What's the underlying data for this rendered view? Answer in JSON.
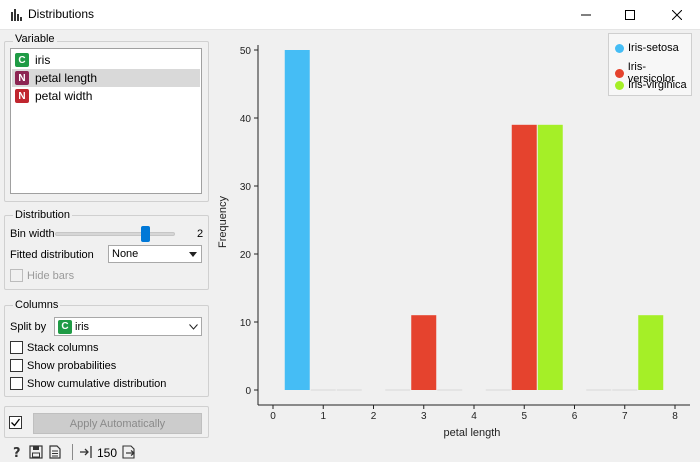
{
  "window": {
    "title": "Distributions"
  },
  "variable": {
    "group_title": "Variable",
    "items": [
      {
        "badge": "C",
        "label": "iris",
        "type": "cat"
      },
      {
        "badge": "N",
        "label": "petal length",
        "type": "num",
        "selected": true
      },
      {
        "badge": "N",
        "label": "petal width",
        "type": "num"
      }
    ]
  },
  "distribution": {
    "group_title": "Distribution",
    "bin_width_label": "Bin width",
    "bin_width_value": "2",
    "bin_width_slider_fraction": 0.75,
    "fitted_label": "Fitted distribution",
    "fitted_value": "None",
    "hide_bars_label": "Hide bars"
  },
  "columns": {
    "group_title": "Columns",
    "split_by_label": "Split by",
    "split_by_badge": "C",
    "split_by_value": "iris",
    "stack_label": "Stack columns",
    "probabilities_label": "Show probabilities",
    "cumulative_label": "Show cumulative distribution"
  },
  "apply": {
    "label": "Apply Automatically",
    "checked": true
  },
  "status": {
    "count": "150"
  },
  "chart_data": {
    "type": "bar",
    "xlabel": "petal length",
    "ylabel": "Frequency",
    "xlim": [
      0,
      8
    ],
    "ylim": [
      0,
      50
    ],
    "x_ticks": [
      0,
      1,
      2,
      3,
      4,
      5,
      6,
      7,
      8
    ],
    "y_ticks": [
      0,
      10,
      20,
      30,
      40,
      50
    ],
    "bins": [
      [
        0,
        2
      ],
      [
        2,
        4
      ],
      [
        4,
        6
      ],
      [
        6,
        8
      ]
    ],
    "series": [
      {
        "name": "Iris-setosa",
        "color": "#45bdf5",
        "values": [
          50,
          0,
          0,
          0
        ]
      },
      {
        "name": "Iris-versicolor",
        "color": "#e5432e",
        "values": [
          0,
          11,
          39,
          0
        ]
      },
      {
        "name": "Iris-virginica",
        "color": "#a5ef27",
        "values": [
          0,
          0,
          39,
          11
        ]
      }
    ],
    "legend_position": "top-right",
    "grid": false
  }
}
